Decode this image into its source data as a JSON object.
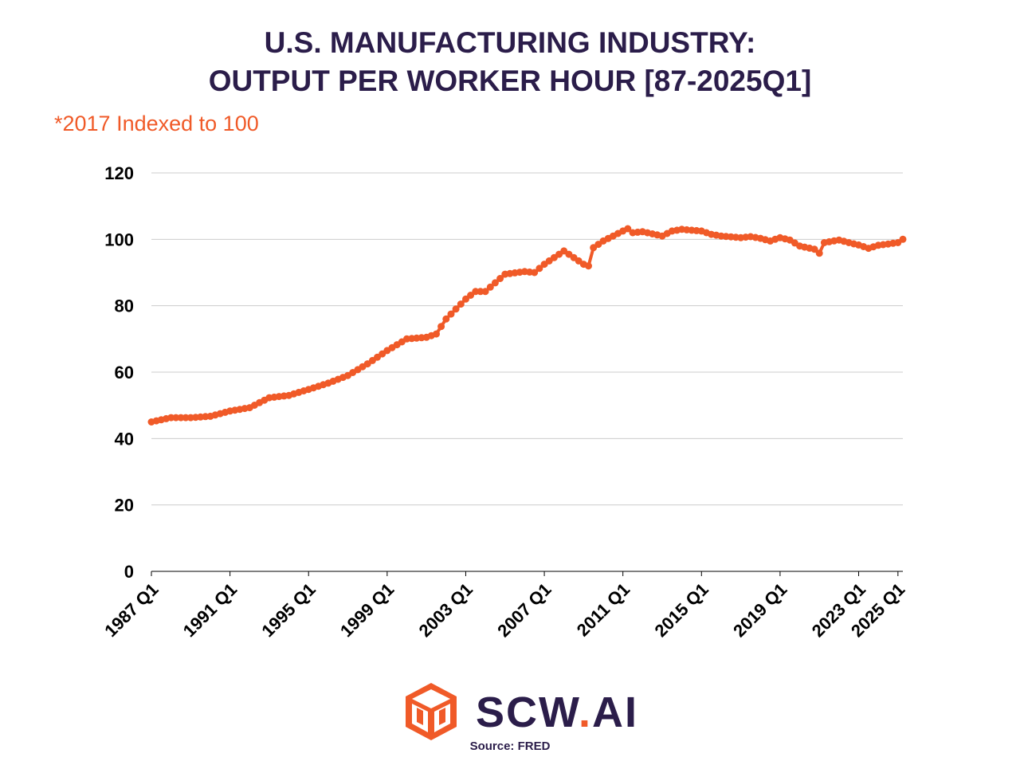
{
  "title_line1": "U.S. MANUFACTURING INDUSTRY:",
  "title_line2": "OUTPUT PER WORKER HOUR [87-2025Q1]",
  "subtitle": "*2017 Indexed to 100",
  "brand": {
    "name_prefix": "SCW",
    "name_dot": ".",
    "name_suffix": "AI"
  },
  "source": "Source: FRED",
  "colors": {
    "line": "#f05a28",
    "title": "#2b1d4a",
    "grid": "#cccccc",
    "axis": "#000000"
  },
  "chart_data": {
    "type": "line",
    "title": "U.S. MANUFACTURING INDUSTRY: OUTPUT PER WORKER HOUR [87-2025Q1]",
    "ylabel": "*2017 Indexed to 100",
    "xlabel": "",
    "ylim": [
      0,
      120
    ],
    "yticks": [
      0,
      20,
      40,
      60,
      80,
      100,
      120
    ],
    "xticks": [
      "1987 Q1",
      "1991 Q1",
      "1995 Q1",
      "1999 Q1",
      "2003 Q1",
      "2007 Q1",
      "2011 Q1",
      "2015 Q1",
      "2019 Q1",
      "2023 Q1",
      "2025 Q1"
    ],
    "grid": true,
    "legend": "none",
    "series": [
      {
        "name": "Output per worker hour",
        "x_start": "1987 Q1",
        "frequency": "quarterly",
        "anchors": [
          [
            1987.0,
            45.0
          ],
          [
            1988.0,
            46.3
          ],
          [
            1989.0,
            46.3
          ],
          [
            1990.0,
            46.7
          ],
          [
            1991.0,
            48.3
          ],
          [
            1992.0,
            49.3
          ],
          [
            1993.0,
            52.3
          ],
          [
            1994.0,
            53.0
          ],
          [
            1995.0,
            54.8
          ],
          [
            1996.0,
            56.7
          ],
          [
            1997.0,
            59.0
          ],
          [
            1998.0,
            62.5
          ],
          [
            1999.0,
            66.5
          ],
          [
            2000.0,
            70.0
          ],
          [
            2001.0,
            70.5
          ],
          [
            2001.5,
            71.5
          ],
          [
            2002.0,
            76.0
          ],
          [
            2003.0,
            82.0
          ],
          [
            2003.5,
            84.3
          ],
          [
            2004.0,
            84.3
          ],
          [
            2005.0,
            89.5
          ],
          [
            2006.0,
            90.3
          ],
          [
            2006.5,
            90.0
          ],
          [
            2007.0,
            92.5
          ],
          [
            2008.0,
            96.5
          ],
          [
            2008.5,
            94.5
          ],
          [
            2009.0,
            92.5
          ],
          [
            2009.25,
            92.0
          ],
          [
            2009.5,
            97.5
          ],
          [
            2010.0,
            99.5
          ],
          [
            2011.0,
            102.5
          ],
          [
            2011.25,
            103.2
          ],
          [
            2011.5,
            102.0
          ],
          [
            2012.0,
            102.3
          ],
          [
            2013.0,
            101.0
          ],
          [
            2013.5,
            102.5
          ],
          [
            2014.0,
            103.0
          ],
          [
            2015.0,
            102.5
          ],
          [
            2015.5,
            101.5
          ],
          [
            2016.0,
            101.0
          ],
          [
            2017.0,
            100.5
          ],
          [
            2017.5,
            100.8
          ],
          [
            2018.0,
            100.3
          ],
          [
            2018.5,
            99.5
          ],
          [
            2019.0,
            100.5
          ],
          [
            2019.5,
            99.8
          ],
          [
            2020.0,
            98.0
          ],
          [
            2020.75,
            97.0
          ],
          [
            2021.0,
            95.8
          ],
          [
            2021.25,
            99.0
          ],
          [
            2022.0,
            99.8
          ],
          [
            2022.5,
            99.0
          ],
          [
            2023.0,
            98.3
          ],
          [
            2023.5,
            97.3
          ],
          [
            2024.0,
            98.2
          ],
          [
            2025.0,
            99.0
          ],
          [
            2025.25,
            100.0
          ]
        ]
      }
    ]
  }
}
